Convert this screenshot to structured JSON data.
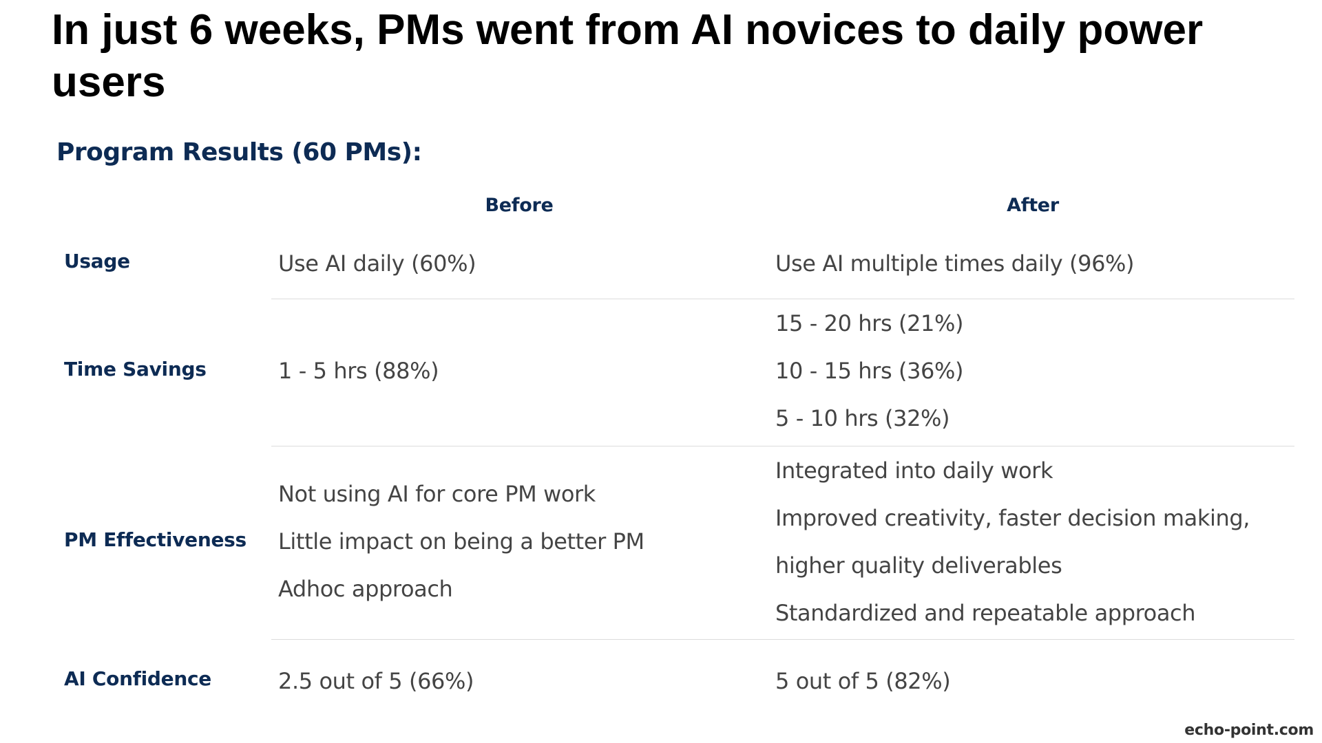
{
  "title": "In just 6 weeks, PMs went from AI novices to daily power users",
  "subtitle": "Program Results (60 PMs):",
  "columns": {
    "before": "Before",
    "after": "After"
  },
  "rows": [
    {
      "label": "Usage",
      "before": [
        "Use AI daily (60%)"
      ],
      "after": [
        "Use AI multiple times daily (96%)"
      ]
    },
    {
      "label": "Time Savings",
      "before": [
        "1 - 5 hrs (88%)"
      ],
      "after": [
        "15 - 20 hrs (21%)",
        "10 - 15 hrs (36%)",
        "5 - 10 hrs (32%)"
      ]
    },
    {
      "label": "PM Effectiveness",
      "before": [
        "Not using AI for core PM work",
        "Little impact on being a better PM",
        "Adhoc approach"
      ],
      "after": [
        "Integrated into daily work",
        "Improved creativity, faster decision making,",
        "higher quality deliverables",
        "Standardized and repeatable approach"
      ]
    },
    {
      "label": "AI Confidence",
      "before": [
        "2.5 out of 5 (66%)"
      ],
      "after": [
        "5 out of 5 (82%)"
      ]
    }
  ],
  "footer": "echo-point.com"
}
